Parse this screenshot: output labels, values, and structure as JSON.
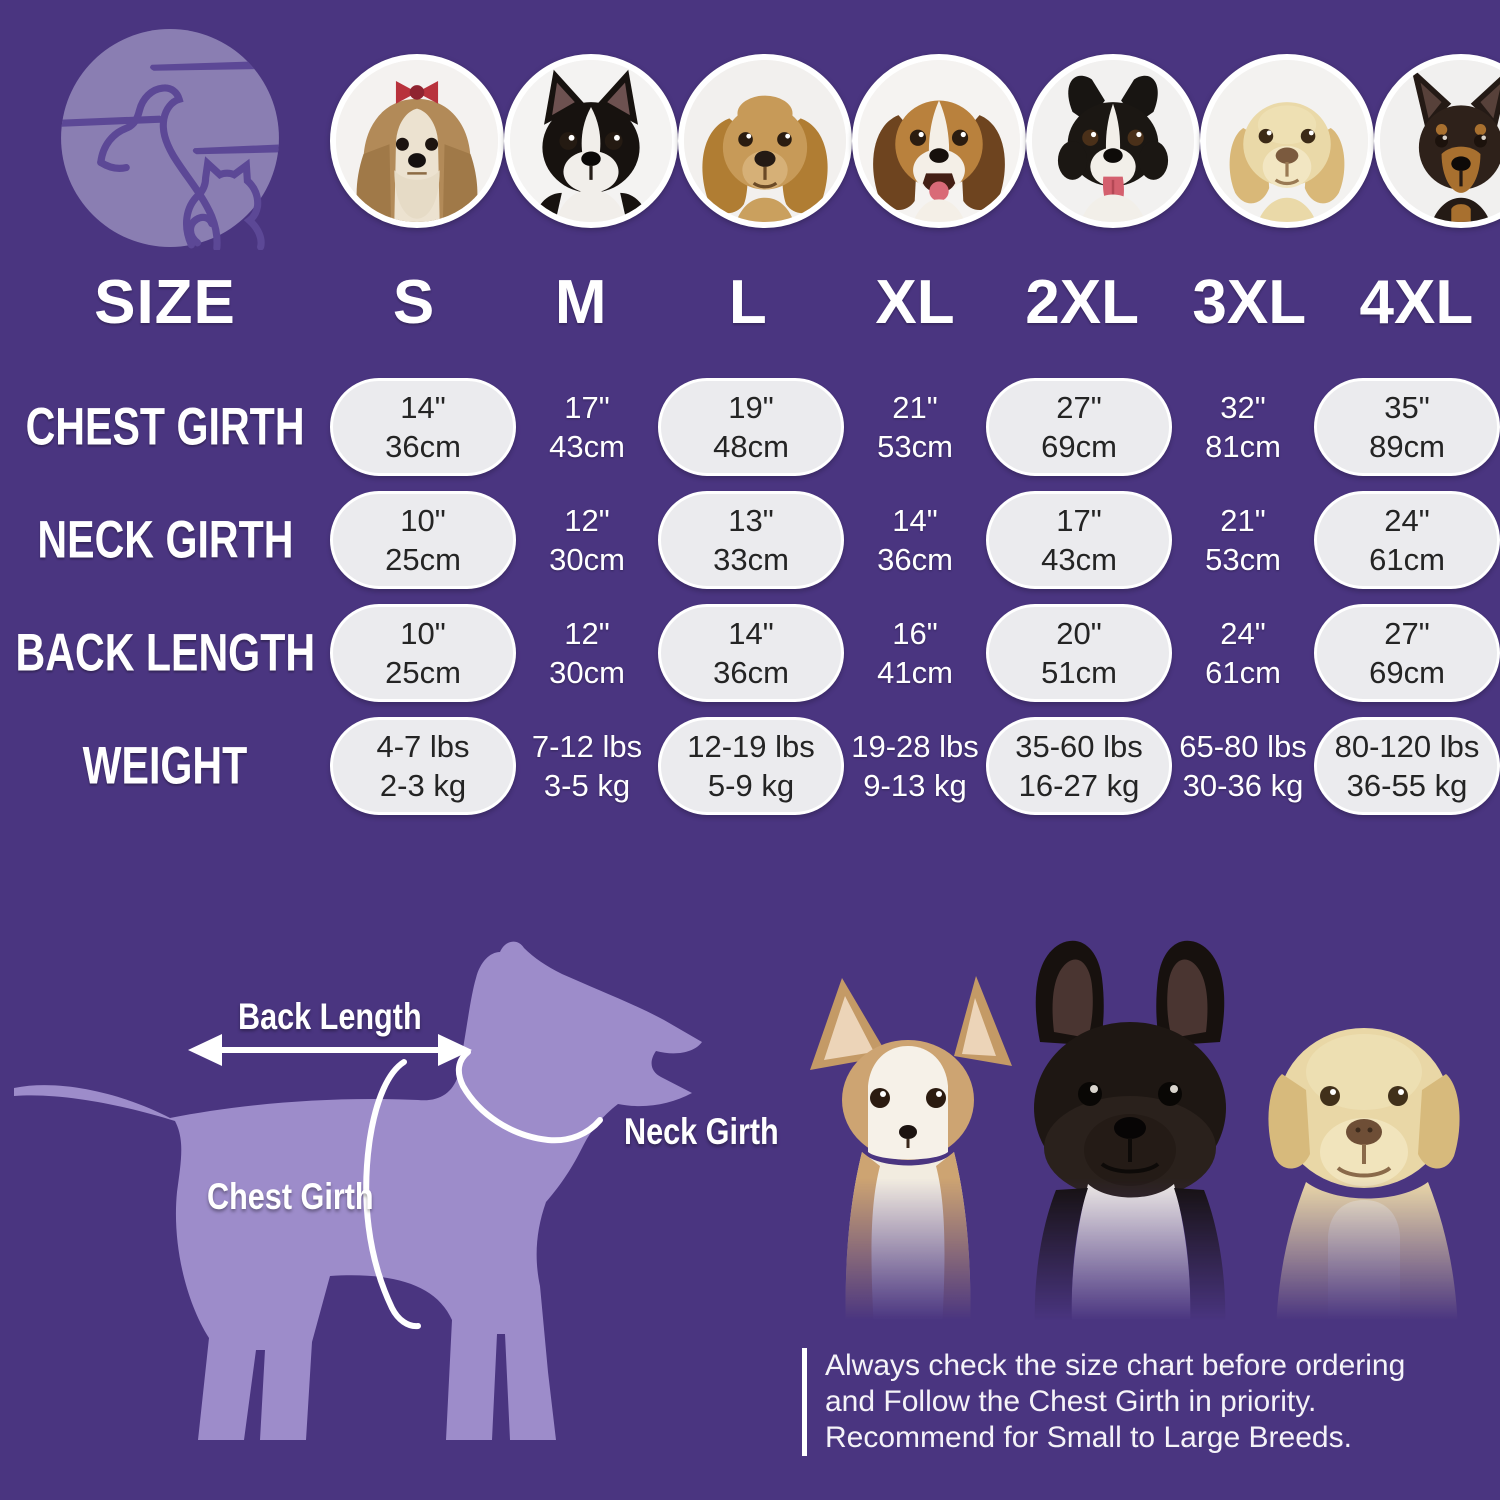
{
  "colors": {
    "background": "#4a3580",
    "silhouette_purple": "#9d8cca",
    "logo_circle": "#8a7eb2",
    "logo_line": "#5c4896",
    "pill_background": "#ebebee",
    "pill_text": "#242424",
    "text_white": "#ffffff"
  },
  "logo": {
    "name": "dog-and-cat-logo"
  },
  "breeds": [
    {
      "slug": "shih-tzu",
      "name": "Shih Tzu"
    },
    {
      "slug": "boston-terrier",
      "name": "Boston Terrier"
    },
    {
      "slug": "cocker-spaniel",
      "name": "Cocker Spaniel"
    },
    {
      "slug": "beagle",
      "name": "Beagle"
    },
    {
      "slug": "border-collie",
      "name": "Border Collie"
    },
    {
      "slug": "labrador",
      "name": "Labrador"
    },
    {
      "slug": "doberman",
      "name": "Doberman"
    }
  ],
  "chart_data": {
    "type": "table",
    "header_label": "SIZE",
    "sizes": [
      "S",
      "M",
      "L",
      "XL",
      "2XL",
      "3XL",
      "4XL"
    ],
    "pill_columns": [
      0,
      2,
      4,
      6
    ],
    "rows": [
      {
        "label": "CHEST GIRTH",
        "cells": [
          [
            "14\"",
            "36cm"
          ],
          [
            "17\"",
            "43cm"
          ],
          [
            "19\"",
            "48cm"
          ],
          [
            "21\"",
            "53cm"
          ],
          [
            "27\"",
            "69cm"
          ],
          [
            "32\"",
            "81cm"
          ],
          [
            "35\"",
            "89cm"
          ]
        ]
      },
      {
        "label": "NECK GIRTH",
        "cells": [
          [
            "10\"",
            "25cm"
          ],
          [
            "12\"",
            "30cm"
          ],
          [
            "13\"",
            "33cm"
          ],
          [
            "14\"",
            "36cm"
          ],
          [
            "17\"",
            "43cm"
          ],
          [
            "21\"",
            "53cm"
          ],
          [
            "24\"",
            "61cm"
          ]
        ]
      },
      {
        "label": "BACK LENGTH",
        "cells": [
          [
            "10\"",
            "25cm"
          ],
          [
            "12\"",
            "30cm"
          ],
          [
            "14\"",
            "36cm"
          ],
          [
            "16\"",
            "41cm"
          ],
          [
            "20\"",
            "51cm"
          ],
          [
            "24\"",
            "61cm"
          ],
          [
            "27\"",
            "69cm"
          ]
        ]
      },
      {
        "label": "WEIGHT",
        "cells": [
          [
            "4-7 lbs",
            "2-3 kg"
          ],
          [
            "7-12 lbs",
            "3-5 kg"
          ],
          [
            "12-19 lbs",
            "5-9 kg"
          ],
          [
            "19-28 lbs",
            "9-13 kg"
          ],
          [
            "35-60 lbs",
            "16-27 kg"
          ],
          [
            "65-80 lbs",
            "30-36 kg"
          ],
          [
            "80-120 lbs",
            "36-55 kg"
          ]
        ]
      }
    ]
  },
  "diagram": {
    "back_length_label": "Back Length",
    "neck_girth_label": "Neck Girth",
    "chest_girth_label": "Chest Girth"
  },
  "note": {
    "lines": [
      "Always check the size chart before ordering",
      "and Follow the Chest Girth in priority.",
      "Recommend for Small to Large Breeds."
    ]
  }
}
